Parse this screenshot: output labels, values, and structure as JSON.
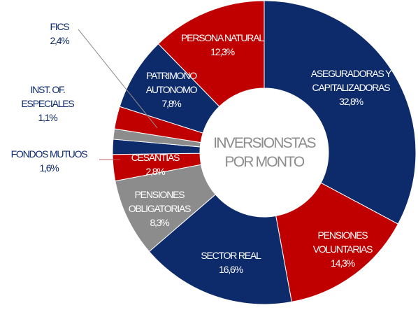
{
  "chart_data": {
    "type": "donut",
    "center_label": "INVERSIONSTAS POR MONTO",
    "categories": [
      "ASEGURADORAS Y CAPITALIZADORAS",
      "PENSIONES VOLUNTARIAS",
      "SECTOR REAL",
      "PENSIONES OBLIGATORIAS",
      "CESANTIAS",
      "FONDOS MUTUOS",
      "INST. OF. ESPECIALES",
      "FICS",
      "PATRIMONO AUTONOMO",
      "PERSONA NATURAL"
    ],
    "values": [
      32.8,
      14.3,
      16.6,
      8.3,
      2.8,
      1.6,
      1.1,
      2.4,
      7.8,
      12.3
    ],
    "value_labels": [
      "32,8%",
      "14,3%",
      "16,6%",
      "8,3%",
      "2,8%",
      "1,6%",
      "1,1%",
      "2,4%",
      "7,8%",
      "12,3%"
    ],
    "colors": [
      "#0d2a6b",
      "#c00000",
      "#0d2a6b",
      "#8c8c8c",
      "#c00000",
      "#0d2a6b",
      "#8c8c8c",
      "#c00000",
      "#0d2a6b",
      "#c00000"
    ]
  }
}
